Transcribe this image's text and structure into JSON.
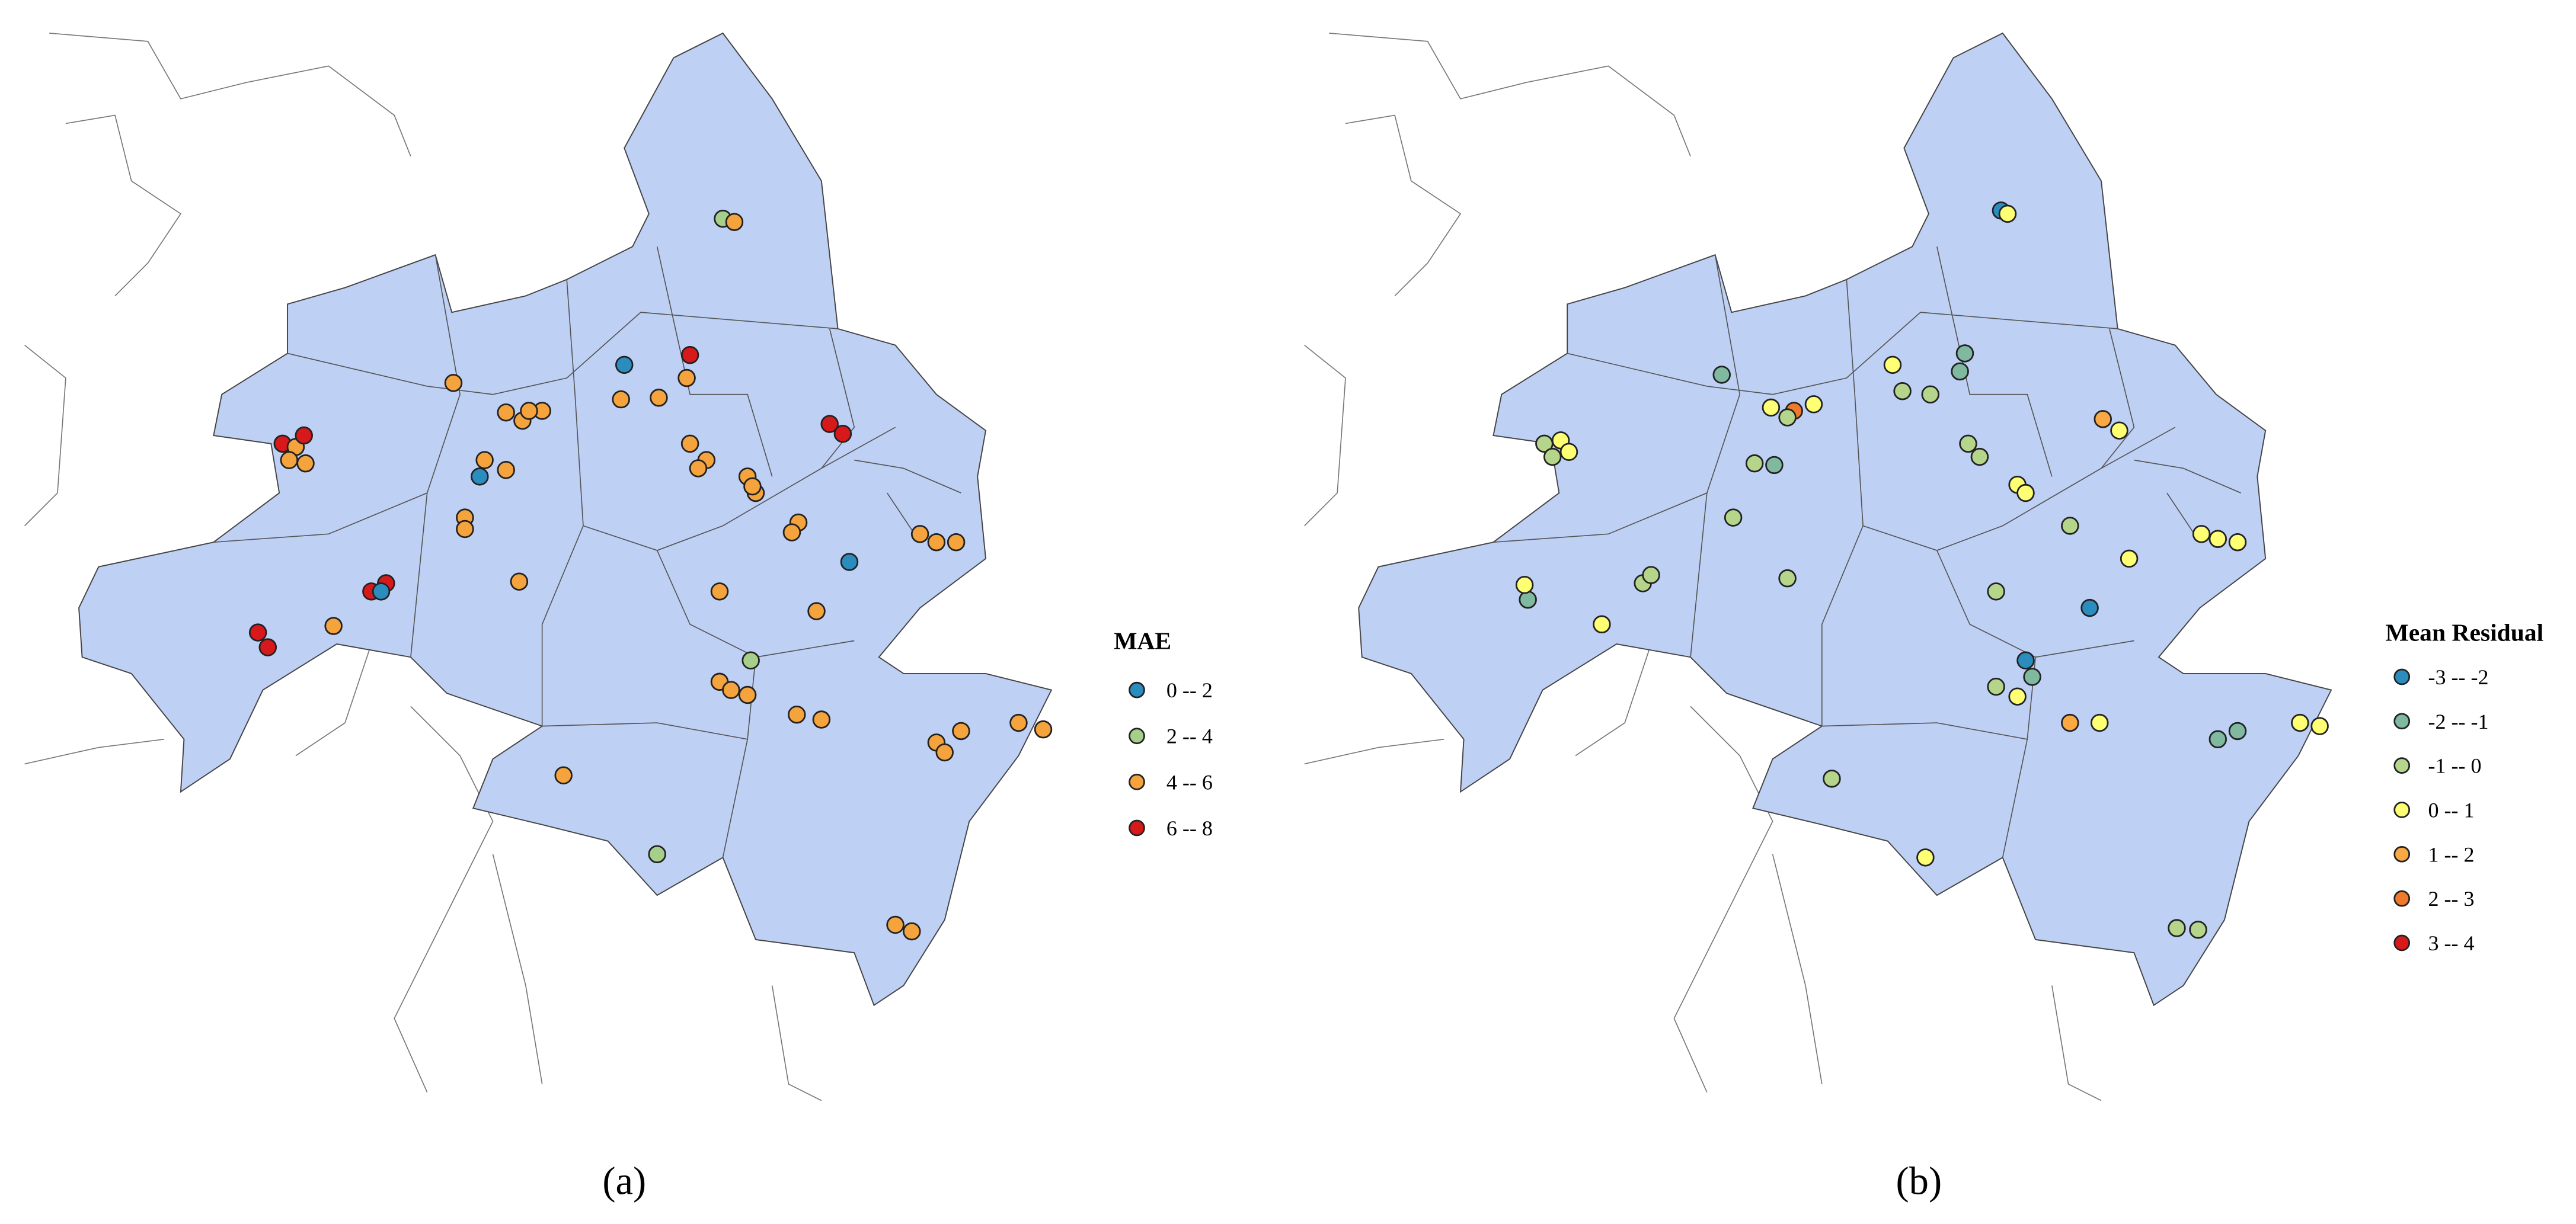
{
  "panels": [
    {
      "caption": "(a)",
      "legend": {
        "title": "MAE",
        "items": [
          {
            "label": "0 -- 2",
            "color": "#2b8cbe"
          },
          {
            "label": "2 -- 4",
            "color": "#a6cf8a"
          },
          {
            "label": "4 -- 6",
            "color": "#f5a33d"
          },
          {
            "label": "6 -- 8",
            "color": "#d7191c"
          }
        ]
      }
    },
    {
      "caption": "(b)",
      "legend": {
        "title": "Mean Residual",
        "items": [
          {
            "label": "-3 -- -2",
            "color": "#2b8cbe"
          },
          {
            "label": "-2 -- -1",
            "color": "#7fb9a0"
          },
          {
            "label": "-1 -- 0",
            "color": "#b5d58b"
          },
          {
            "label": "0 -- 1",
            "color": "#ffff73"
          },
          {
            "label": "1 -- 2",
            "color": "#f9a844"
          },
          {
            "label": "2 -- 3",
            "color": "#f07a2c"
          },
          {
            "label": "3 -- 4",
            "color": "#d7191c"
          }
        ]
      }
    }
  ]
}
